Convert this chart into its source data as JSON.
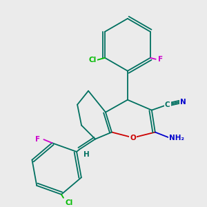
{
  "background_color": "#ebebeb",
  "bond_color": "#007060",
  "atom_colors": {
    "N": "#0000CC",
    "O": "#CC0000",
    "Cl": "#00BB00",
    "F": "#CC00CC",
    "C": "#007060",
    "H": "#007060"
  },
  "font_size": 7.5,
  "line_width": 1.3
}
